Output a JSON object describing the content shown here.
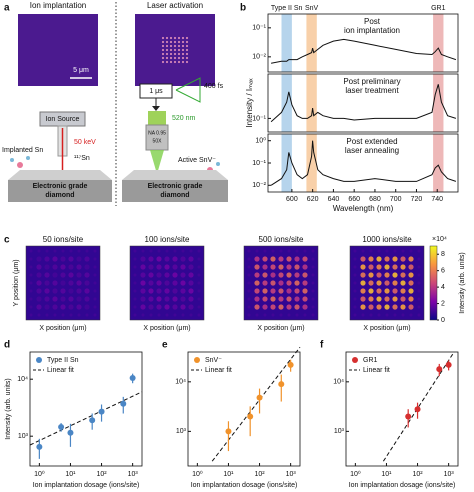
{
  "figure": {
    "panel_a": {
      "label": "a",
      "image_titles": [
        "Ion implantation",
        "Laser activation"
      ],
      "scale_bar": "5 μm",
      "ion_source": "Ion Source",
      "energy": "50 keV",
      "isotope": "¹¹⁷Sn",
      "implanted": "Implanted Sn",
      "substrate_left": [
        "Electronic grade",
        "diamond"
      ],
      "pulse_period": "1 μs",
      "pulse_width": "400 fs",
      "wavelength": "520 nm",
      "objective": [
        "NA 0.95",
        "50X"
      ],
      "active": "Active SnV⁻",
      "substrate_right": [
        "Electronic grade",
        "diamond"
      ]
    }
  },
  "chart_data": [
    {
      "type": "line",
      "panel_label": "b",
      "annotation": [
        "Post",
        "ion implantation"
      ],
      "bands": [
        {
          "label": "Type II Sn",
          "x": [
            590,
            600
          ],
          "color": "#9ec5e6"
        },
        {
          "label": "SnV",
          "x": [
            614,
            624
          ],
          "color": "#f6c08c"
        },
        {
          "label": "GR1",
          "x": [
            736,
            746
          ],
          "color": "#e8a0a0"
        }
      ],
      "x": [
        580,
        590,
        595,
        597,
        600,
        605,
        610,
        615,
        619,
        620,
        621,
        625,
        630,
        640,
        650,
        660,
        680,
        700,
        720,
        735,
        738,
        741,
        744,
        750,
        758
      ],
      "series": [
        {
          "color": "#111111",
          "values": [
            0.006,
            0.007,
            0.007,
            0.008,
            0.008,
            0.008,
            0.01,
            0.012,
            0.014,
            0.02,
            0.014,
            0.018,
            0.025,
            0.035,
            0.04,
            0.035,
            0.025,
            0.018,
            0.013,
            0.012,
            0.015,
            0.02,
            0.012,
            0.01,
            0.008
          ]
        }
      ],
      "xlim": [
        577,
        760
      ],
      "log_y": true,
      "ylim": [
        0.003,
        0.3
      ],
      "yticks": [
        {
          "value": 0.1,
          "label": "10⁻¹"
        },
        {
          "value": 0.01,
          "label": "10⁻²"
        }
      ]
    },
    {
      "type": "line",
      "annotation": [
        "Post preliminary",
        "laser treatment"
      ],
      "ylabel": "Intensity / Iₘₐₓ",
      "x": [
        580,
        590,
        595,
        597,
        600,
        605,
        610,
        615,
        619,
        620,
        621,
        625,
        630,
        640,
        650,
        660,
        680,
        700,
        720,
        735,
        738,
        741,
        744,
        750,
        758
      ],
      "series": [
        {
          "color": "#111111",
          "values": [
            0.08,
            0.15,
            0.3,
            0.6,
            0.25,
            0.12,
            0.1,
            0.1,
            0.12,
            0.2,
            0.12,
            0.15,
            0.12,
            0.1,
            0.1,
            0.09,
            0.1,
            0.1,
            0.1,
            0.15,
            0.5,
            1.0,
            0.3,
            0.12,
            0.1
          ]
        }
      ],
      "xlim": [
        577,
        760
      ],
      "log_y": true,
      "ylim": [
        0.04,
        2
      ],
      "yticks": [
        {
          "value": 0.1,
          "label": "10⁻¹"
        }
      ]
    },
    {
      "type": "line",
      "annotation": [
        "Post extended",
        "laser annealing"
      ],
      "x": [
        580,
        590,
        595,
        597,
        600,
        605,
        610,
        615,
        619,
        620,
        621,
        625,
        630,
        640,
        650,
        660,
        680,
        700,
        720,
        735,
        738,
        741,
        744,
        750,
        758
      ],
      "series": [
        {
          "color": "#111111",
          "values": [
            0.01,
            0.02,
            0.05,
            0.3,
            0.1,
            0.03,
            0.02,
            0.03,
            0.2,
            1.0,
            0.3,
            0.05,
            0.03,
            0.02,
            0.015,
            0.015,
            0.02,
            0.015,
            0.015,
            0.03,
            0.06,
            0.08,
            0.04,
            0.02,
            0.015
          ]
        }
      ],
      "xlim": [
        577,
        760
      ],
      "log_y": true,
      "ylim": [
        0.005,
        2
      ],
      "yticks": [
        {
          "value": 1,
          "label": "10⁰"
        },
        {
          "value": 0.1,
          "label": "10⁻¹"
        },
        {
          "value": 0.01,
          "label": "10⁻²"
        }
      ],
      "xticks": [
        600,
        620,
        640,
        660,
        680,
        700,
        720,
        740
      ],
      "xlabel": "Wavelength (nm)"
    },
    {
      "type": "heatmap",
      "panel_label": "c",
      "titles": [
        "50 ions/site",
        "100 ions/site",
        "500 ions/site",
        "1000 ions/site"
      ],
      "xlabel": "X position (μm)",
      "ylabel": "Y position (μm)",
      "colorbar": {
        "label": "Intensity (arb. units)",
        "multiplier": "×10⁴",
        "lim": [
          0,
          9
        ],
        "ticks": [
          0,
          2,
          4,
          6,
          8
        ]
      }
    },
    {
      "type": "scatter",
      "panel_label": "d",
      "xlabel": "Ion implantation dosage (ions/site)",
      "ylabel": "Intensity (arb. units)",
      "log_x": true,
      "log_y": true,
      "xlim": [
        0.5,
        2000
      ],
      "ylim": [
        300,
        30000
      ],
      "xticks": [
        {
          "value": 1,
          "label": "10⁰"
        },
        {
          "value": 10,
          "label": "10¹"
        },
        {
          "value": 100,
          "label": "10²"
        },
        {
          "value": 1000,
          "label": "10³"
        }
      ],
      "yticks": [
        {
          "value": 1000,
          "label": "10³"
        },
        {
          "value": 10000,
          "label": "10⁴"
        }
      ],
      "series": [
        {
          "name": "Type II Sn",
          "color": "#4a86c5",
          "x": [
            1,
            5,
            10,
            50,
            100,
            500,
            1000
          ],
          "values": [
            650,
            1450,
            1150,
            1900,
            2700,
            3700,
            10500
          ],
          "errors": [
            250,
            250,
            500,
            600,
            900,
            1200,
            2000
          ]
        }
      ],
      "fit": {
        "name": "Linear fit",
        "x": [
          0.5,
          2000
        ],
        "values": [
          700,
          6000
        ]
      }
    },
    {
      "type": "scatter",
      "panel_label": "e",
      "xlabel": "Ion implantation dosage (ions/site)",
      "log_x": true,
      "log_y": true,
      "xlim": [
        0.5,
        2000
      ],
      "ylim": [
        200,
        40000
      ],
      "xticks": [
        {
          "value": 1,
          "label": "10⁰"
        },
        {
          "value": 10,
          "label": "10¹"
        },
        {
          "value": 100,
          "label": "10²"
        },
        {
          "value": 1000,
          "label": "10³"
        }
      ],
      "yticks": [
        {
          "value": 1000,
          "label": "10³"
        },
        {
          "value": 10000,
          "label": "10⁴"
        }
      ],
      "series": [
        {
          "name": "SnV⁻",
          "color": "#f0922b",
          "x": [
            10,
            50,
            100,
            500,
            1000
          ],
          "values": [
            1000,
            2000,
            4800,
            9000,
            22000
          ],
          "errors": [
            600,
            1200,
            2500,
            5000,
            6000
          ]
        }
      ],
      "fit": {
        "name": "Linear fit",
        "x": [
          3,
          2000
        ],
        "values": [
          250,
          50000
        ]
      }
    },
    {
      "type": "scatter",
      "panel_label": "f",
      "xlabel": "Ion implantation dosage (ions/site)",
      "log_x": true,
      "log_y": true,
      "xlim": [
        0.5,
        2000
      ],
      "ylim": [
        200,
        40000
      ],
      "xticks": [
        {
          "value": 1,
          "label": "10⁰"
        },
        {
          "value": 10,
          "label": "10¹"
        },
        {
          "value": 100,
          "label": "10²"
        },
        {
          "value": 1000,
          "label": "10³"
        }
      ],
      "yticks": [
        {
          "value": 1000,
          "label": "10³"
        },
        {
          "value": 10000,
          "label": "10⁴"
        }
      ],
      "series": [
        {
          "name": "GR1",
          "color": "#d62f2f",
          "x": [
            50,
            100,
            500,
            1000
          ],
          "values": [
            2000,
            2800,
            18000,
            22000
          ],
          "errors": [
            800,
            1000,
            5000,
            5000
          ]
        }
      ],
      "fit": {
        "name": "Linear fit",
        "x": [
          8,
          1500
        ],
        "values": [
          250,
          40000
        ]
      }
    }
  ]
}
